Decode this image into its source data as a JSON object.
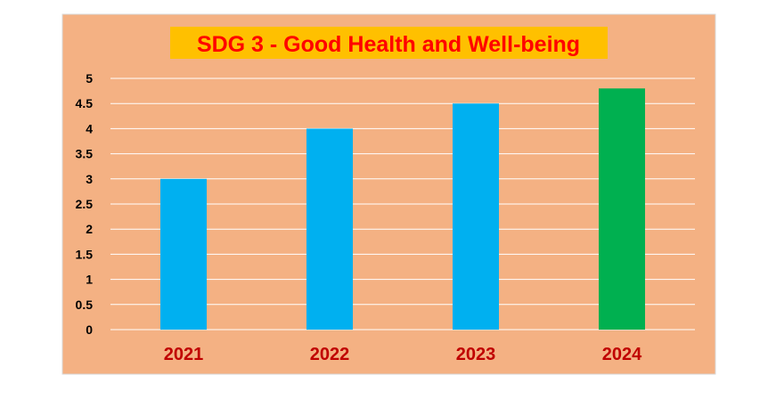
{
  "chart_data": {
    "type": "bar",
    "title": "SDG 3 - Good Health and Well-being",
    "categories": [
      "2021",
      "2022",
      "2023",
      "2024"
    ],
    "values": [
      3,
      4,
      4.5,
      4.8
    ],
    "bar_colors": [
      "#00B0F0",
      "#00B0F0",
      "#00B0F0",
      "#00B050"
    ],
    "xlabel": "",
    "ylabel": "",
    "ylim": [
      0,
      5
    ],
    "yticks": [
      "0",
      "0.5",
      "1",
      "1.5",
      "2",
      "2.5",
      "3",
      "3.5",
      "4",
      "4.5",
      "5"
    ],
    "grid": true,
    "legend": "none"
  },
  "colors": {
    "plot_background": "#F4B183",
    "title_highlight": "#FFC000",
    "title_text": "#FF0000",
    "category_label": "#C00000",
    "gridline": "#FFFFFF",
    "tick_label": "#000000",
    "frame_border": "#D9D9D9"
  }
}
